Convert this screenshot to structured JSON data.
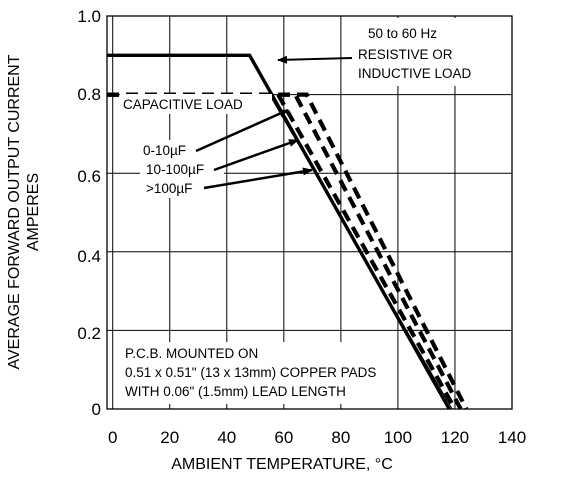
{
  "chart_data": {
    "type": "line",
    "xlabel": "AMBIENT TEMPERATURE, °C",
    "ylabel_lines": [
      "AVERAGE FORWARD OUTPUT CURRENT",
      "AMPERES"
    ],
    "xlim": [
      -2,
      140
    ],
    "ylim": [
      0,
      1.0
    ],
    "x_ticks": [
      0,
      20,
      40,
      60,
      80,
      100,
      120,
      140
    ],
    "y_ticks": [
      "0",
      "0.2",
      "0.4",
      "0.6",
      "0.8",
      "1.0"
    ],
    "grid": true,
    "series": [
      {
        "name": "50 to 60 Hz RESISTIVE OR INDUCTIVE LOAD",
        "style": "solid-thick",
        "points": [
          [
            -2,
            0.9
          ],
          [
            48,
            0.9
          ],
          [
            118,
            0
          ]
        ]
      },
      {
        "style": "solid-thin",
        "points": [
          [
            55,
            0.8
          ],
          [
            119,
            0
          ]
        ]
      },
      {
        "name": "0-10µF",
        "style": "dashed",
        "points": [
          [
            -2,
            0.8
          ],
          [
            58,
            0.8
          ],
          [
            120,
            0
          ]
        ]
      },
      {
        "name": "10-100µF",
        "style": "dashed",
        "points": [
          [
            -2,
            0.8
          ],
          [
            64,
            0.8
          ],
          [
            122,
            0
          ]
        ]
      },
      {
        "name": ">100µF",
        "style": "dashed",
        "points": [
          [
            -2,
            0.8
          ],
          [
            68,
            0.8
          ],
          [
            124,
            0
          ]
        ]
      }
    ],
    "annotations": {
      "resistive": [
        "50 to 60 Hz",
        "RESISTIVE OR",
        "INDUCTIVE LOAD"
      ],
      "capacitive": "CAPACITIVE LOAD",
      "cap_labels": [
        "0-10µF",
        "10-100µF",
        ">100µF"
      ],
      "pcb": [
        "P.C.B. MOUNTED ON",
        "0.51 x 0.51\" (13 x 13mm) COPPER PADS",
        "WITH 0.06\" (1.5mm) LEAD LENGTH"
      ]
    }
  }
}
